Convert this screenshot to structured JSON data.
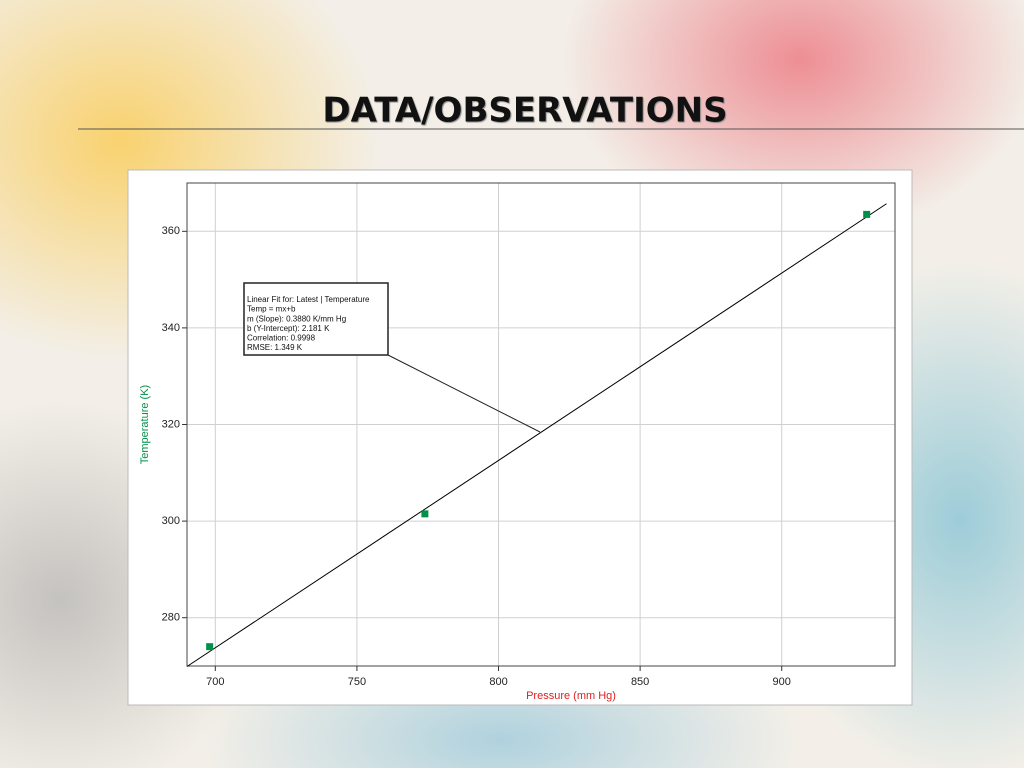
{
  "title": "DATA/OBSERVATIONS",
  "chart_data": {
    "type": "scatter",
    "x_label": "Pressure (mm Hg)",
    "y_label": "Temperature (K)",
    "xlim": [
      690,
      940
    ],
    "ylim": [
      270,
      370
    ],
    "xticks": [
      700,
      750,
      800,
      850,
      900
    ],
    "yticks": [
      280,
      300,
      320,
      340,
      360
    ],
    "grid": true,
    "series": [
      {
        "color": "#00904a",
        "x": [
          698,
          774,
          930
        ],
        "values": [
          274,
          301.5,
          363.5
        ]
      }
    ],
    "fit": {
      "color": "#000000",
      "x": [
        690,
        937
      ],
      "values": [
        269.9,
        365.7
      ]
    },
    "annotation": [
      "Linear Fit for: Latest | Temperature",
      "Temp = mx+b",
      "m (Slope): 0.3880 K/mm Hg",
      "b (Y-Intercept): 2.181 K",
      "Correlation: 0.9998",
      "RMSE: 1.349 K"
    ]
  }
}
